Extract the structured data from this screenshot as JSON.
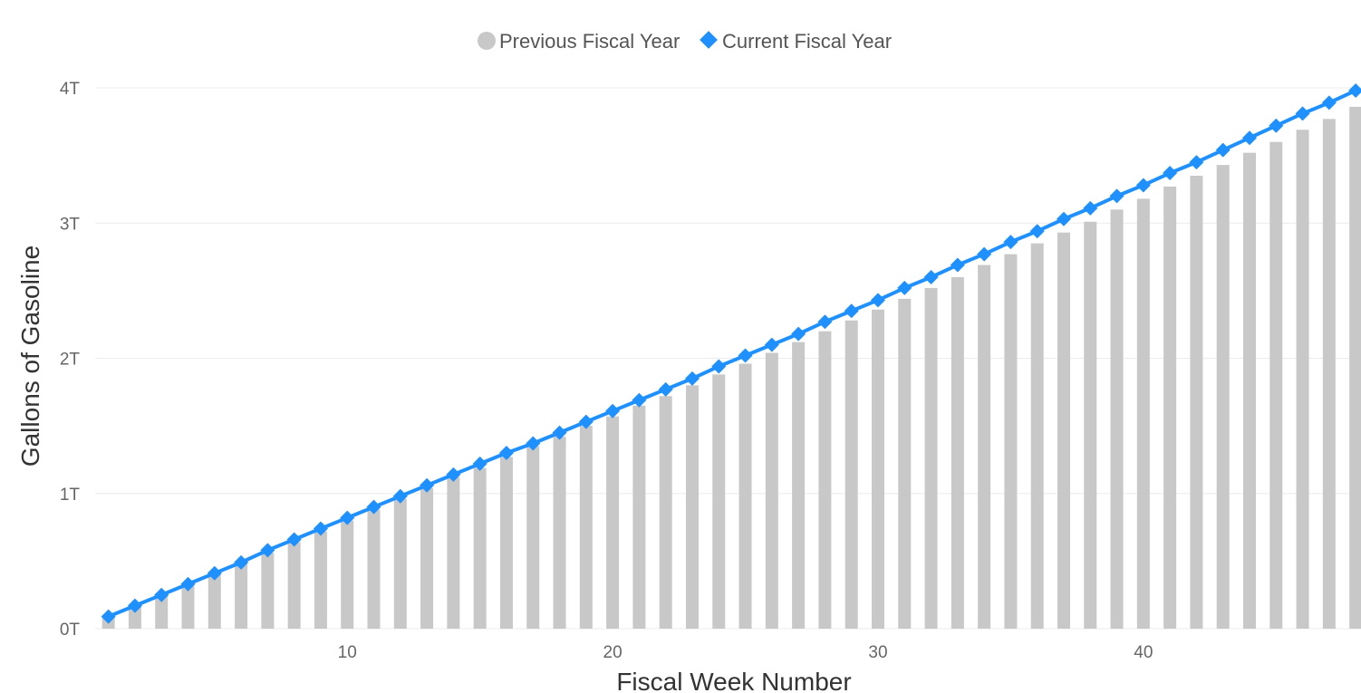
{
  "chart_data": {
    "type": "bar",
    "title": "",
    "xlabel": "Fiscal Week Number",
    "ylabel": "Gallons of Gasoline",
    "x": [
      1,
      2,
      3,
      4,
      5,
      6,
      7,
      8,
      9,
      10,
      11,
      12,
      13,
      14,
      15,
      16,
      17,
      18,
      19,
      20,
      21,
      22,
      23,
      24,
      25,
      26,
      27,
      28,
      29,
      30,
      31,
      32,
      33,
      34,
      35,
      36,
      37,
      38,
      39,
      40,
      41,
      42,
      43,
      44,
      45,
      46,
      47,
      48
    ],
    "x_ticks": [
      10,
      20,
      30,
      40
    ],
    "x_tick_labels": [
      "10",
      "20",
      "30",
      "40"
    ],
    "y_ticks": [
      0,
      1,
      2,
      3,
      4
    ],
    "y_tick_labels": [
      "0T",
      "1T",
      "2T",
      "3T",
      "4T"
    ],
    "ylim": [
      0,
      4
    ],
    "xlim": [
      0.5,
      48.2
    ],
    "y_unit": "trillion gallons",
    "grid": true,
    "legend_position": "top-center",
    "series": [
      {
        "name": "Previous Fiscal Year",
        "kind": "bar",
        "color": "#c8c8c8",
        "marker": "circle",
        "values": [
          0.08,
          0.16,
          0.24,
          0.32,
          0.4,
          0.48,
          0.56,
          0.64,
          0.72,
          0.8,
          0.88,
          0.96,
          1.04,
          1.12,
          1.19,
          1.27,
          1.35,
          1.42,
          1.5,
          1.57,
          1.65,
          1.72,
          1.8,
          1.88,
          1.96,
          2.04,
          2.12,
          2.2,
          2.28,
          2.36,
          2.44,
          2.52,
          2.6,
          2.69,
          2.77,
          2.85,
          2.93,
          3.01,
          3.1,
          3.18,
          3.27,
          3.35,
          3.43,
          3.52,
          3.6,
          3.69,
          3.77,
          3.86
        ]
      },
      {
        "name": "Current Fiscal Year",
        "kind": "line",
        "color": "#1e90ff",
        "marker": "diamond",
        "values": [
          0.09,
          0.17,
          0.25,
          0.33,
          0.41,
          0.49,
          0.58,
          0.66,
          0.74,
          0.82,
          0.9,
          0.98,
          1.06,
          1.14,
          1.22,
          1.3,
          1.37,
          1.45,
          1.53,
          1.61,
          1.69,
          1.77,
          1.85,
          1.94,
          2.02,
          2.1,
          2.18,
          2.27,
          2.35,
          2.43,
          2.52,
          2.6,
          2.69,
          2.77,
          2.86,
          2.94,
          3.03,
          3.11,
          3.2,
          3.28,
          3.37,
          3.45,
          3.54,
          3.63,
          3.72,
          3.81,
          3.89,
          3.98
        ]
      }
    ]
  }
}
